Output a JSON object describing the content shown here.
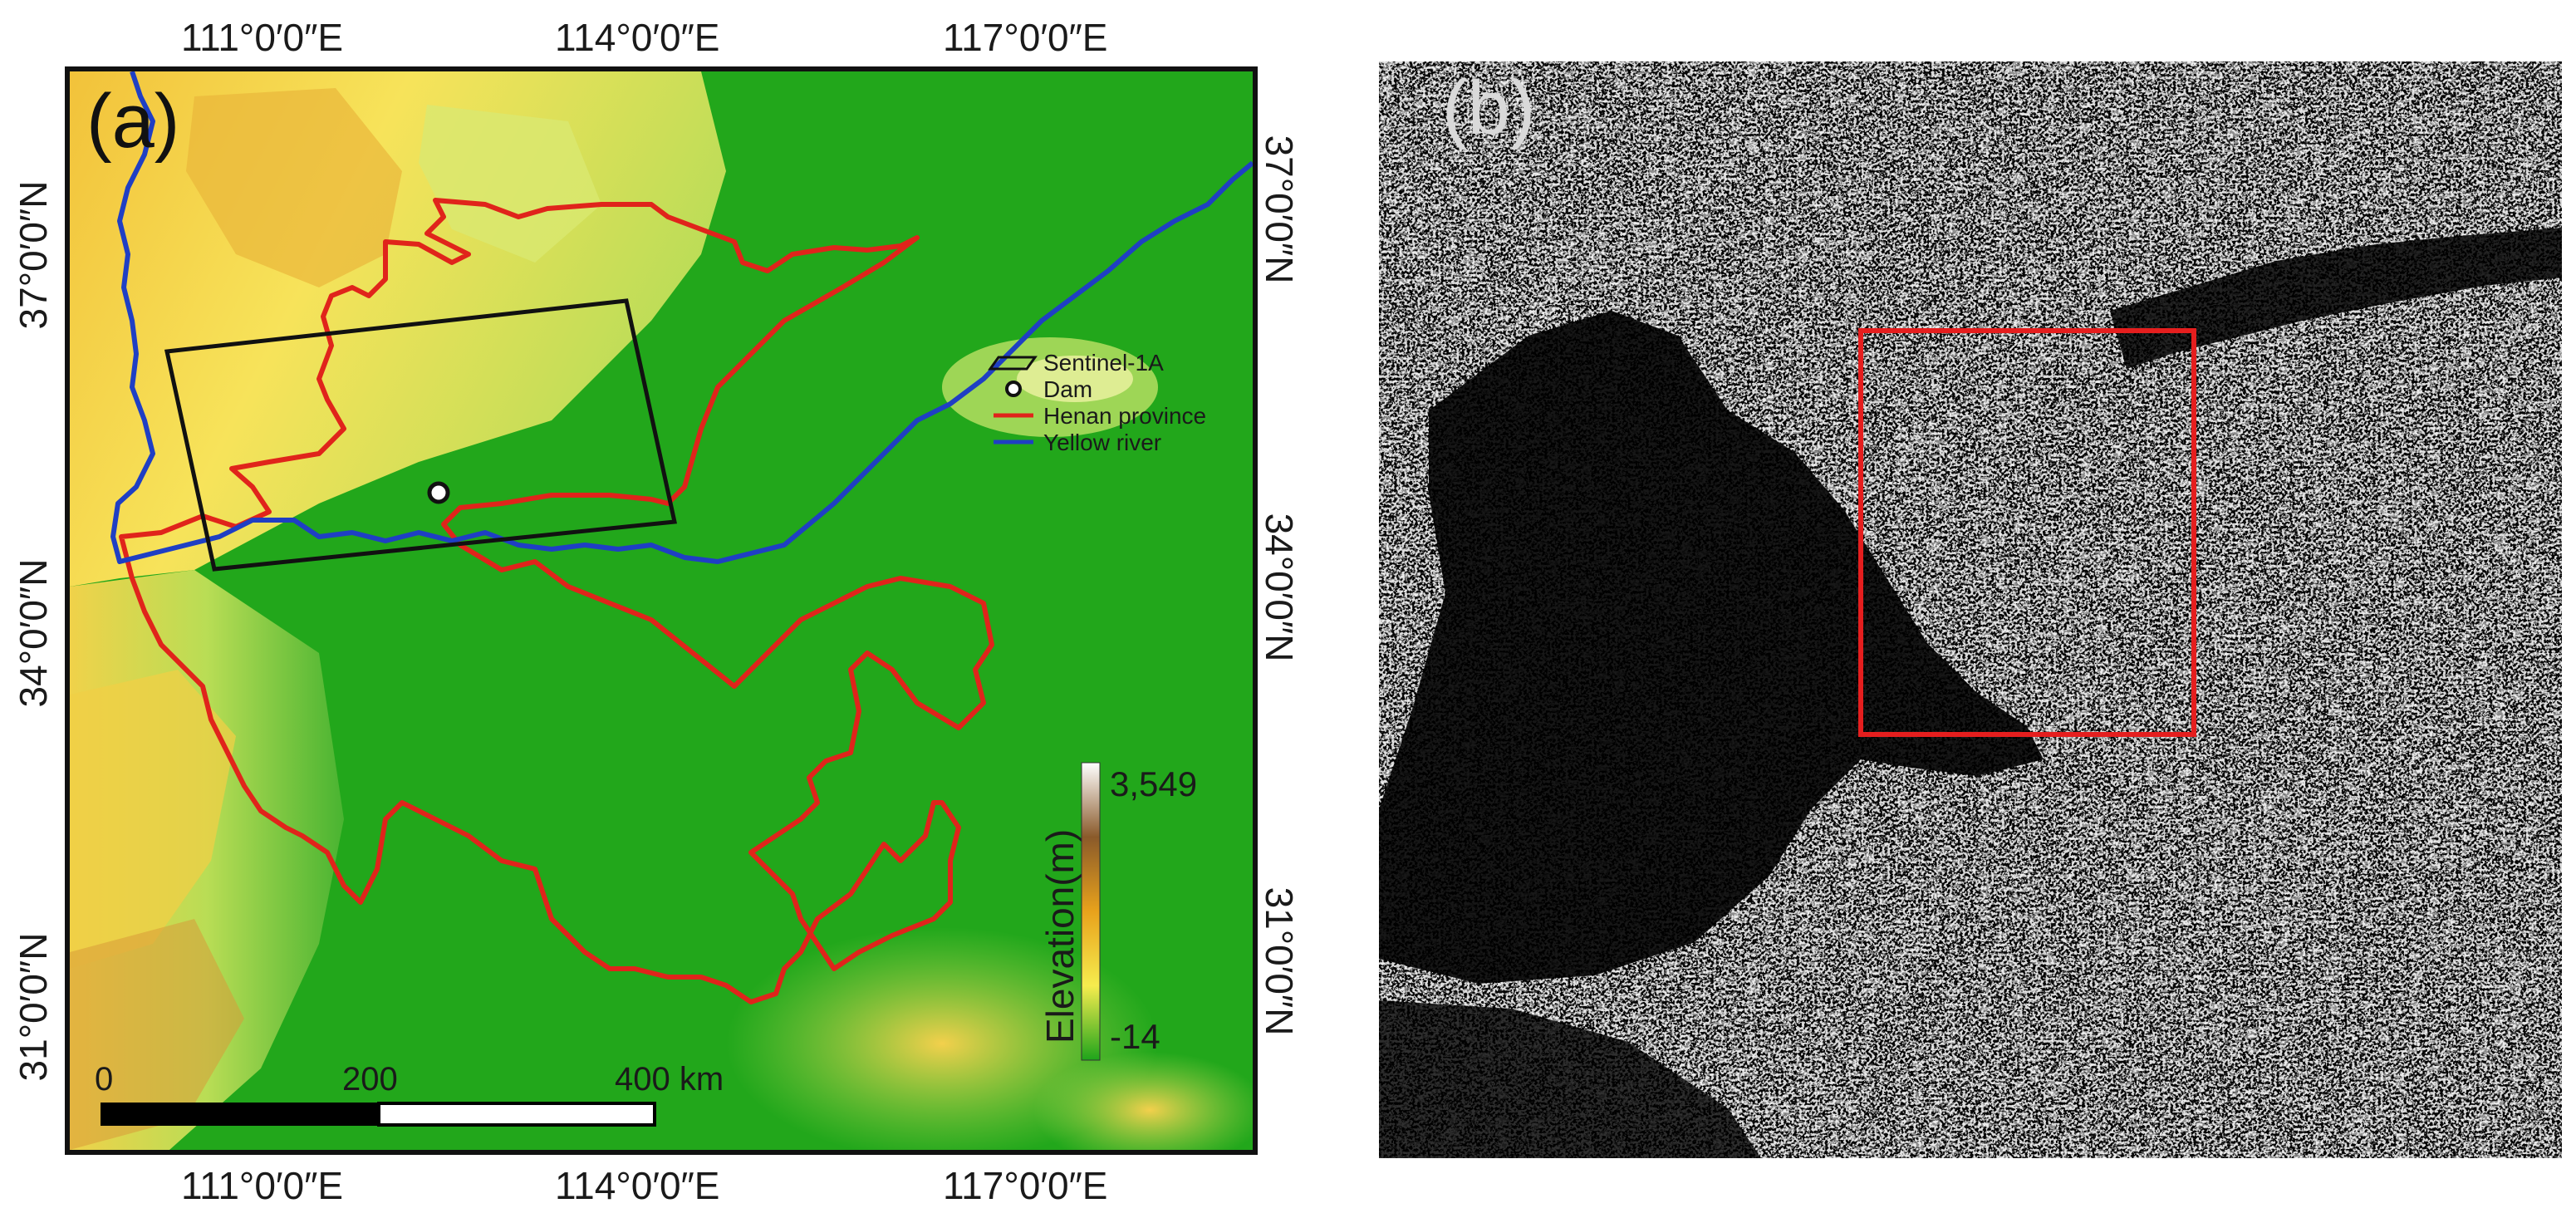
{
  "panel_a": {
    "label": "(a)",
    "lon_ticks": [
      "111°0′0″E",
      "114°0′0″E",
      "117°0′0″E"
    ],
    "lat_ticks": [
      "37°0′0″N",
      "34°0′0″N",
      "31°0′0″N"
    ],
    "legend": {
      "sentinel": "Sentinel-1A",
      "dam": "Dam",
      "henan": "Henan province",
      "river": "Yellow river"
    },
    "colorbar": {
      "title": "Elevation(m)",
      "max": "3,549",
      "min": "-14"
    },
    "scalebar": {
      "zero": "0",
      "mid": "200",
      "end": "400 km"
    },
    "colors": {
      "henan": "#e0241b",
      "river": "#1f3fc4",
      "frame": "#111111",
      "plain": "#23a81c"
    }
  },
  "panel_b": {
    "label": "(b)",
    "colors": {
      "box": "#e51e1e",
      "background": "#000000"
    }
  }
}
